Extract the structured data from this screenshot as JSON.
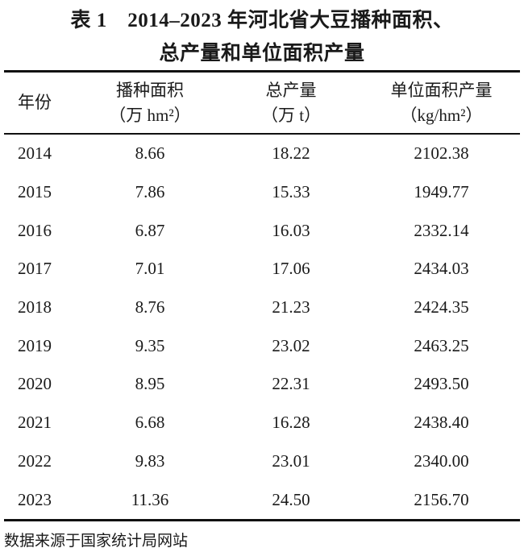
{
  "page": {
    "caption_line1": "表 1　2014–2023 年河北省大豆播种面积、",
    "caption_line2": "总产量和单位面积产量",
    "footnote": "数据来源于国家统计局网站"
  },
  "table": {
    "columns": [
      {
        "label": "年份",
        "unit": ""
      },
      {
        "label": "播种面积",
        "unit": "（万 hm²）"
      },
      {
        "label": "总产量",
        "unit": "（万 t）"
      },
      {
        "label": "单位面积产量",
        "unit": "（kg/hm²）"
      }
    ],
    "rows": [
      [
        "2014",
        "8.66",
        "18.22",
        "2102.38"
      ],
      [
        "2015",
        "7.86",
        "15.33",
        "1949.77"
      ],
      [
        "2016",
        "6.87",
        "16.03",
        "2332.14"
      ],
      [
        "2017",
        "7.01",
        "17.06",
        "2434.03"
      ],
      [
        "2018",
        "8.76",
        "21.23",
        "2424.35"
      ],
      [
        "2019",
        "9.35",
        "23.02",
        "2463.25"
      ],
      [
        "2020",
        "8.95",
        "22.31",
        "2493.50"
      ],
      [
        "2021",
        "6.68",
        "16.28",
        "2438.40"
      ],
      [
        "2022",
        "9.83",
        "23.01",
        "2340.00"
      ],
      [
        "2023",
        "11.36",
        "24.50",
        "2156.70"
      ]
    ]
  },
  "chart_data": {
    "type": "table",
    "title": "表 1 2014–2023 年河北省大豆播种面积、总产量和单位面积产量",
    "categories": [
      2014,
      2015,
      2016,
      2017,
      2018,
      2019,
      2020,
      2021,
      2022,
      2023
    ],
    "series": [
      {
        "name": "播种面积（万 hm²）",
        "values": [
          8.66,
          7.86,
          6.87,
          7.01,
          8.76,
          9.35,
          8.95,
          6.68,
          9.83,
          11.36
        ]
      },
      {
        "name": "总产量（万 t）",
        "values": [
          18.22,
          15.33,
          16.03,
          17.06,
          21.23,
          23.02,
          22.31,
          16.28,
          23.01,
          24.5
        ]
      },
      {
        "name": "单位面积产量（kg/hm²）",
        "values": [
          2102.38,
          1949.77,
          2332.14,
          2434.03,
          2424.35,
          2463.25,
          2493.5,
          2438.4,
          2340.0,
          2156.7
        ]
      }
    ],
    "source_note": "数据来源于国家统计局网站"
  },
  "colors": {
    "text": "#1a1a1a",
    "rule": "#111111",
    "background": "#ffffff"
  }
}
